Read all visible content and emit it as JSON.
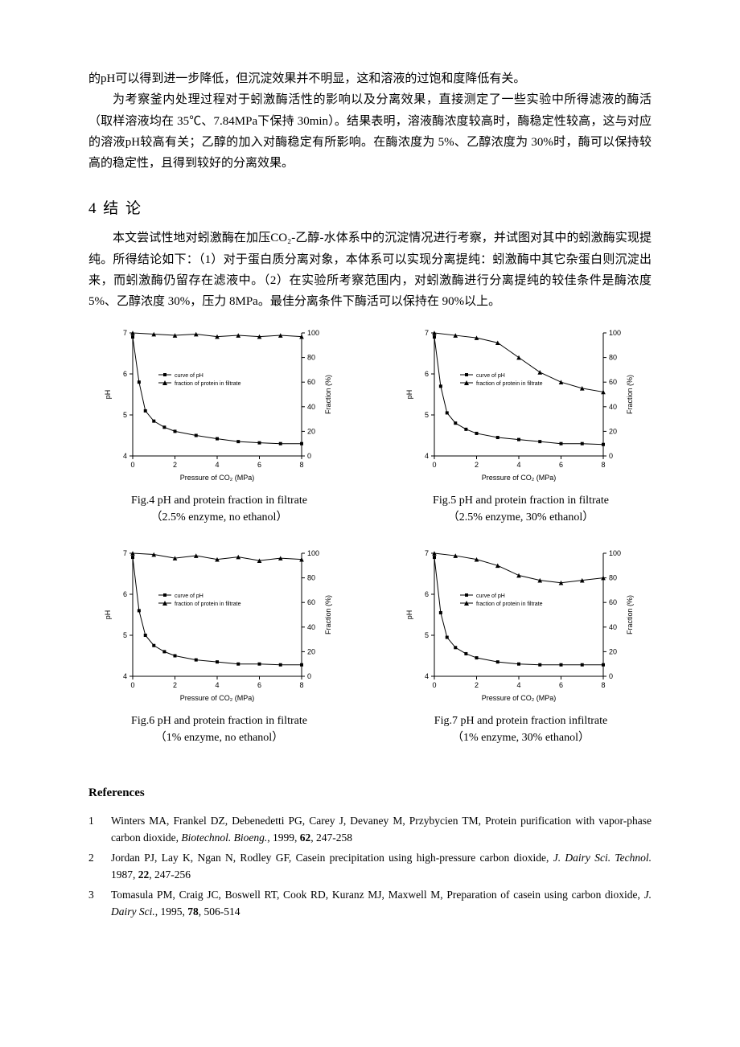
{
  "paragraphs": {
    "p1": "的pH可以得到进一步降低，但沉淀效果并不明显，这和溶液的过饱和度降低有关。",
    "p2": "为考察釜内处理过程对于蚓激酶活性的影响以及分离效果，直接测定了一些实验中所得滤液的酶活（取样溶液均在 35℃、7.84MPa下保持 30min）。结果表明，溶液酶浓度较高时，酶稳定性较高，这与对应的溶液pH较高有关；乙醇的加入对酶稳定有所影响。在酶浓度为 5%、乙醇浓度为 30%时，酶可以保持较高的稳定性，且得到较好的分离效果。",
    "p3": "本文尝试性地对蚓激酶在加压CO₂-乙醇-水体系中的沉淀情况进行考察，并试图对其中的蚓激酶实现提纯。所得结论如下：（1）对于蛋白质分离对象，本体系可以实现分离提纯：蚓激酶中其它杂蛋白则沉淀出来，而蚓激酶仍留存在滤液中。（2）在实验所考察范围内，对蚓激酶进行分离提纯的较佳条件是酶浓度 5%、乙醇浓度 30%，压力 8MPa。最佳分离条件下酶活可以保持在 90%以上。"
  },
  "section_heading": "4 结  论",
  "chart_common": {
    "xlabel": "Pressure of CO₂ (MPa)",
    "ylabel_left": "pH",
    "ylabel_right": "Fraction (%)",
    "legend_ph": "curve of pH",
    "legend_frac": "fraction of protein in filtrate",
    "x_ticks": [
      0,
      2,
      4,
      6,
      8
    ],
    "y_left_ticks": [
      4,
      5,
      6,
      7
    ],
    "y_right_ticks": [
      0,
      20,
      40,
      60,
      80,
      100
    ],
    "xlim": [
      0,
      8
    ],
    "ylim_left": [
      4,
      7
    ],
    "ylim_right": [
      0,
      100
    ],
    "colors": {
      "axis": "#000000",
      "line": "#000000",
      "background": "#ffffff"
    },
    "axis_fontsize_pt": 9,
    "legend_fontsize_pt": 7,
    "marker_ph": "square",
    "marker_frac": "triangle",
    "marker_size": 4
  },
  "figures": [
    {
      "id": "fig4",
      "caption_line1": "Fig.4 pH and protein fraction in filtrate",
      "caption_line2": "（2.5% enzyme, no ethanol）",
      "ph_data": [
        [
          0,
          6.9
        ],
        [
          0.3,
          5.8
        ],
        [
          0.6,
          5.1
        ],
        [
          1,
          4.85
        ],
        [
          1.5,
          4.7
        ],
        [
          2,
          4.6
        ],
        [
          3,
          4.5
        ],
        [
          4,
          4.42
        ],
        [
          5,
          4.35
        ],
        [
          6,
          4.32
        ],
        [
          7,
          4.3
        ],
        [
          8,
          4.3
        ]
      ],
      "frac_data": [
        [
          0,
          100
        ],
        [
          1,
          99
        ],
        [
          2,
          98
        ],
        [
          3,
          99
        ],
        [
          4,
          97
        ],
        [
          5,
          98
        ],
        [
          6,
          97
        ],
        [
          7,
          98
        ],
        [
          8,
          97
        ]
      ]
    },
    {
      "id": "fig5",
      "caption_line1": "Fig.5 pH and protein fraction in filtrate",
      "caption_line2": "（2.5% enzyme, 30% ethanol）",
      "ph_data": [
        [
          0,
          6.9
        ],
        [
          0.3,
          5.7
        ],
        [
          0.6,
          5.05
        ],
        [
          1,
          4.8
        ],
        [
          1.5,
          4.65
        ],
        [
          2,
          4.55
        ],
        [
          3,
          4.45
        ],
        [
          4,
          4.4
        ],
        [
          5,
          4.35
        ],
        [
          6,
          4.3
        ],
        [
          7,
          4.3
        ],
        [
          8,
          4.28
        ]
      ],
      "frac_data": [
        [
          0,
          100
        ],
        [
          1,
          98
        ],
        [
          2,
          96
        ],
        [
          3,
          92
        ],
        [
          4,
          80
        ],
        [
          5,
          68
        ],
        [
          6,
          60
        ],
        [
          7,
          55
        ],
        [
          8,
          52
        ]
      ]
    },
    {
      "id": "fig6",
      "caption_line1": "Fig.6 pH and protein fraction in filtrate",
      "caption_line2": "（1% enzyme, no ethanol）",
      "ph_data": [
        [
          0,
          6.9
        ],
        [
          0.3,
          5.6
        ],
        [
          0.6,
          5.0
        ],
        [
          1,
          4.75
        ],
        [
          1.5,
          4.6
        ],
        [
          2,
          4.5
        ],
        [
          3,
          4.4
        ],
        [
          4,
          4.35
        ],
        [
          5,
          4.3
        ],
        [
          6,
          4.3
        ],
        [
          7,
          4.28
        ],
        [
          8,
          4.28
        ]
      ],
      "frac_data": [
        [
          0,
          100
        ],
        [
          1,
          99
        ],
        [
          2,
          96
        ],
        [
          3,
          98
        ],
        [
          4,
          95
        ],
        [
          5,
          97
        ],
        [
          6,
          94
        ],
        [
          7,
          96
        ],
        [
          8,
          95
        ]
      ]
    },
    {
      "id": "fig7",
      "caption_line1": "Fig.7 pH and protein fraction infiltrate",
      "caption_line2": "（1% enzyme, 30% ethanol）",
      "ph_data": [
        [
          0,
          6.9
        ],
        [
          0.3,
          5.55
        ],
        [
          0.6,
          4.95
        ],
        [
          1,
          4.7
        ],
        [
          1.5,
          4.55
        ],
        [
          2,
          4.45
        ],
        [
          3,
          4.35
        ],
        [
          4,
          4.3
        ],
        [
          5,
          4.28
        ],
        [
          6,
          4.28
        ],
        [
          7,
          4.28
        ],
        [
          8,
          4.28
        ]
      ],
      "frac_data": [
        [
          0,
          100
        ],
        [
          1,
          98
        ],
        [
          2,
          95
        ],
        [
          3,
          90
        ],
        [
          4,
          82
        ],
        [
          5,
          78
        ],
        [
          6,
          76
        ],
        [
          7,
          78
        ],
        [
          8,
          80
        ]
      ]
    }
  ],
  "references_heading": "References",
  "references": [
    {
      "num": "1",
      "html": "Winters MA, Frankel DZ, Debenedetti PG, Carey J, Devaney M, Przybycien TM, Protein purification with vapor-phase carbon dioxide, <em>Biotechnol. Bioeng.</em>, 1999, <b>62</b>, 247-258"
    },
    {
      "num": "2",
      "html": "Jordan PJ, Lay K, Ngan N, Rodley GF, Casein precipitation using high-pressure carbon dioxide, <em>J. Dairy Sci. Technol.</em> 1987, <b>22</b>, 247-256"
    },
    {
      "num": "3",
      "html": "Tomasula PM, Craig JC, Boswell RT, Cook RD, Kuranz MJ, Maxwell M, Preparation of casein using carbon dioxide, <em>J. Dairy Sci.</em>, 1995, <b>78</b>, 506-514"
    }
  ]
}
